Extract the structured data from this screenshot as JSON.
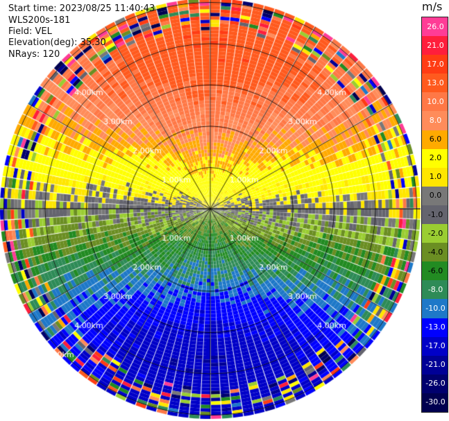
{
  "info": {
    "start_time": "Start time: 2023/08/25 11:40:43",
    "device": "WLS200s-181",
    "field": "Field: VEL",
    "elevation": "Elevation(deg): 35.30",
    "nrays": "NRays: 120"
  },
  "colorbar": {
    "unit": "m/s",
    "ticks": [
      "26.0",
      "21.0",
      "17.0",
      "13.0",
      "10.0",
      "8.0",
      "6.0",
      "2.0",
      "1.0",
      "0.0",
      "-1.0",
      "-2.0",
      "-4.0",
      "-6.0",
      "-8.0",
      "-10.0",
      "-13.0",
      "-17.0",
      "-21.0",
      "-26.0",
      "-30.0"
    ],
    "colors": [
      "#ff3c96",
      "#ff1e3c",
      "#ff3c14",
      "#ff5a1e",
      "#ff7846",
      "#ff8c5a",
      "#ffaa00",
      "#ffff00",
      "#ffe600",
      "#787878",
      "#64646e",
      "#9acd32",
      "#6b8e23",
      "#228b22",
      "#2e8b57",
      "#1e78c8",
      "#0000ff",
      "#0000c8",
      "#000096",
      "#00006e",
      "#000050"
    ]
  },
  "chart_data": {
    "type": "ppi",
    "field": "VEL",
    "units": "m/s",
    "nrays": 120,
    "elevation_deg": 35.3,
    "range_ring_labels": [
      "1.00km",
      "2.00km",
      "3.00km",
      "4.00km",
      "5.00km"
    ],
    "range_rings_km": [
      1,
      2,
      3,
      4,
      5
    ],
    "velocity_pattern": {
      "north_sector": "positive 8 to 17 m/s (orange/red)",
      "south_sector": "negative -6 to -10 m/s (blue/green)",
      "east_west": "near zero (gray/yellow)"
    }
  }
}
